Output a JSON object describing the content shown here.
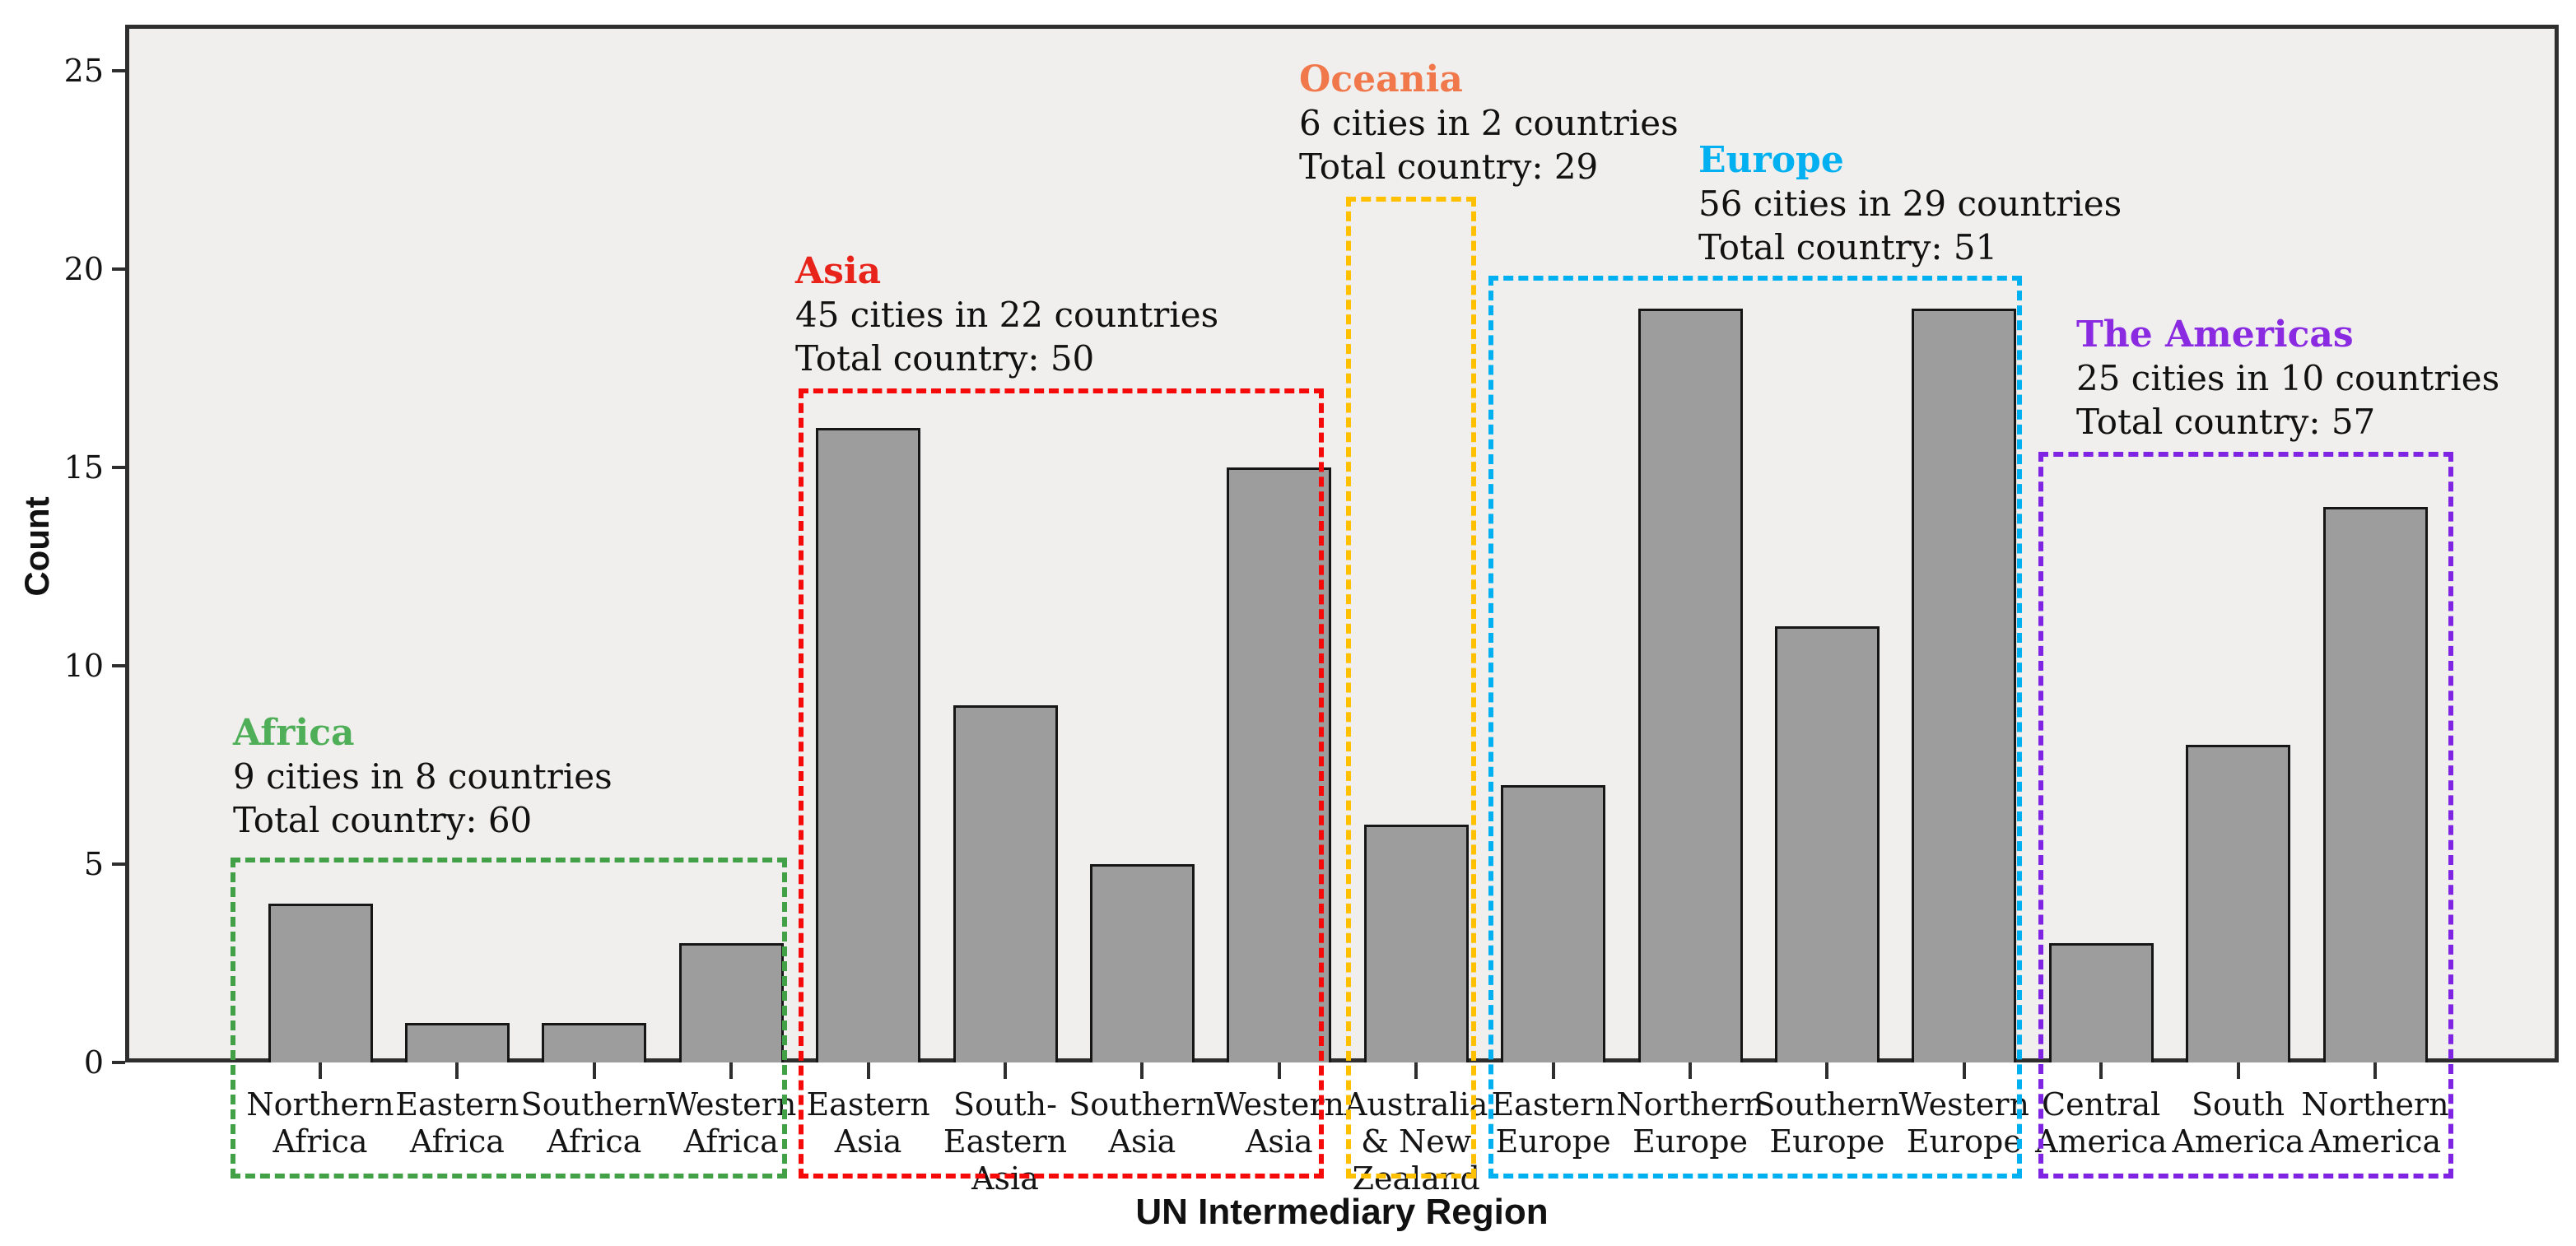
{
  "chart_data": {
    "type": "bar",
    "title": "",
    "xlabel": "UN Intermediary Region",
    "ylabel": "Count",
    "ylim": [
      0,
      26
    ],
    "yticks": [
      0,
      5,
      10,
      15,
      20,
      25
    ],
    "grid": false,
    "legend": "none",
    "bar_fill_color": "#9d9d9d",
    "bar_border_color": "#161616",
    "plot_background_color": "#f0efee",
    "categories": [
      "Northern Africa",
      "Eastern Africa",
      "Southern Africa",
      "Western Africa",
      "Eastern Asia",
      "South-Eastern Asia",
      "Southern Asia",
      "Western Asia",
      "Australia & New Zealand",
      "Eastern Europe",
      "Northern Europe",
      "Southern Europe",
      "Western Europe",
      "Central America",
      "South America",
      "Northern America"
    ],
    "category_label_lines": [
      [
        "Northern",
        "Africa"
      ],
      [
        "Eastern",
        "Africa"
      ],
      [
        "Southern",
        "Africa"
      ],
      [
        "Western",
        "Africa"
      ],
      [
        "Eastern",
        "Asia"
      ],
      [
        "South-",
        "Eastern",
        "Asia"
      ],
      [
        "Southern",
        "Asia"
      ],
      [
        "Western",
        "Asia"
      ],
      [
        "Australia",
        "& New",
        "Zealand"
      ],
      [
        "Eastern",
        "Europe"
      ],
      [
        "Northern",
        "Europe"
      ],
      [
        "Southern",
        "Europe"
      ],
      [
        "Western",
        "Europe"
      ],
      [
        "Central",
        "America"
      ],
      [
        "South",
        "America"
      ],
      [
        "Northern",
        "America"
      ]
    ],
    "values": [
      4,
      1,
      1,
      3,
      16,
      9,
      5,
      15,
      6,
      7,
      19,
      11,
      19,
      3,
      8,
      14
    ],
    "groups": [
      {
        "id": "africa",
        "title": "Africa",
        "line1": "9 cities in 8 countries",
        "line2": "Total country: 60",
        "title_color": "#4fae58",
        "box_color": "#42a047",
        "category_span": [
          "Northern Africa",
          "Western Africa"
        ]
      },
      {
        "id": "asia",
        "title": "Asia",
        "line1": "45 cities in 22 countries",
        "line2": "Total country: 50",
        "title_color": "#e8231a",
        "box_color": "#f60909",
        "category_span": [
          "Eastern Asia",
          "Western Asia"
        ]
      },
      {
        "id": "oceania",
        "title": "Oceania",
        "line1": "6 cities in 2 countries",
        "line2": "Total country: 29",
        "title_color": "#f0784a",
        "box_color": "#ffc000",
        "category_span": [
          "Australia & New Zealand",
          "Australia & New Zealand"
        ]
      },
      {
        "id": "europe",
        "title": "Europe",
        "line1": "56 cities in 29 countries",
        "line2": "Total country: 51",
        "title_color": "#00b0f0",
        "box_color": "#00b0f0",
        "category_span": [
          "Eastern Europe",
          "Western Europe"
        ]
      },
      {
        "id": "americas",
        "title": "The Americas",
        "line1": "25 cities in 10 countries",
        "line2": "Total country: 57",
        "title_color": "#8a2be2",
        "box_color": "#7f24e2",
        "category_span": [
          "Central America",
          "Northern America"
        ]
      }
    ]
  }
}
